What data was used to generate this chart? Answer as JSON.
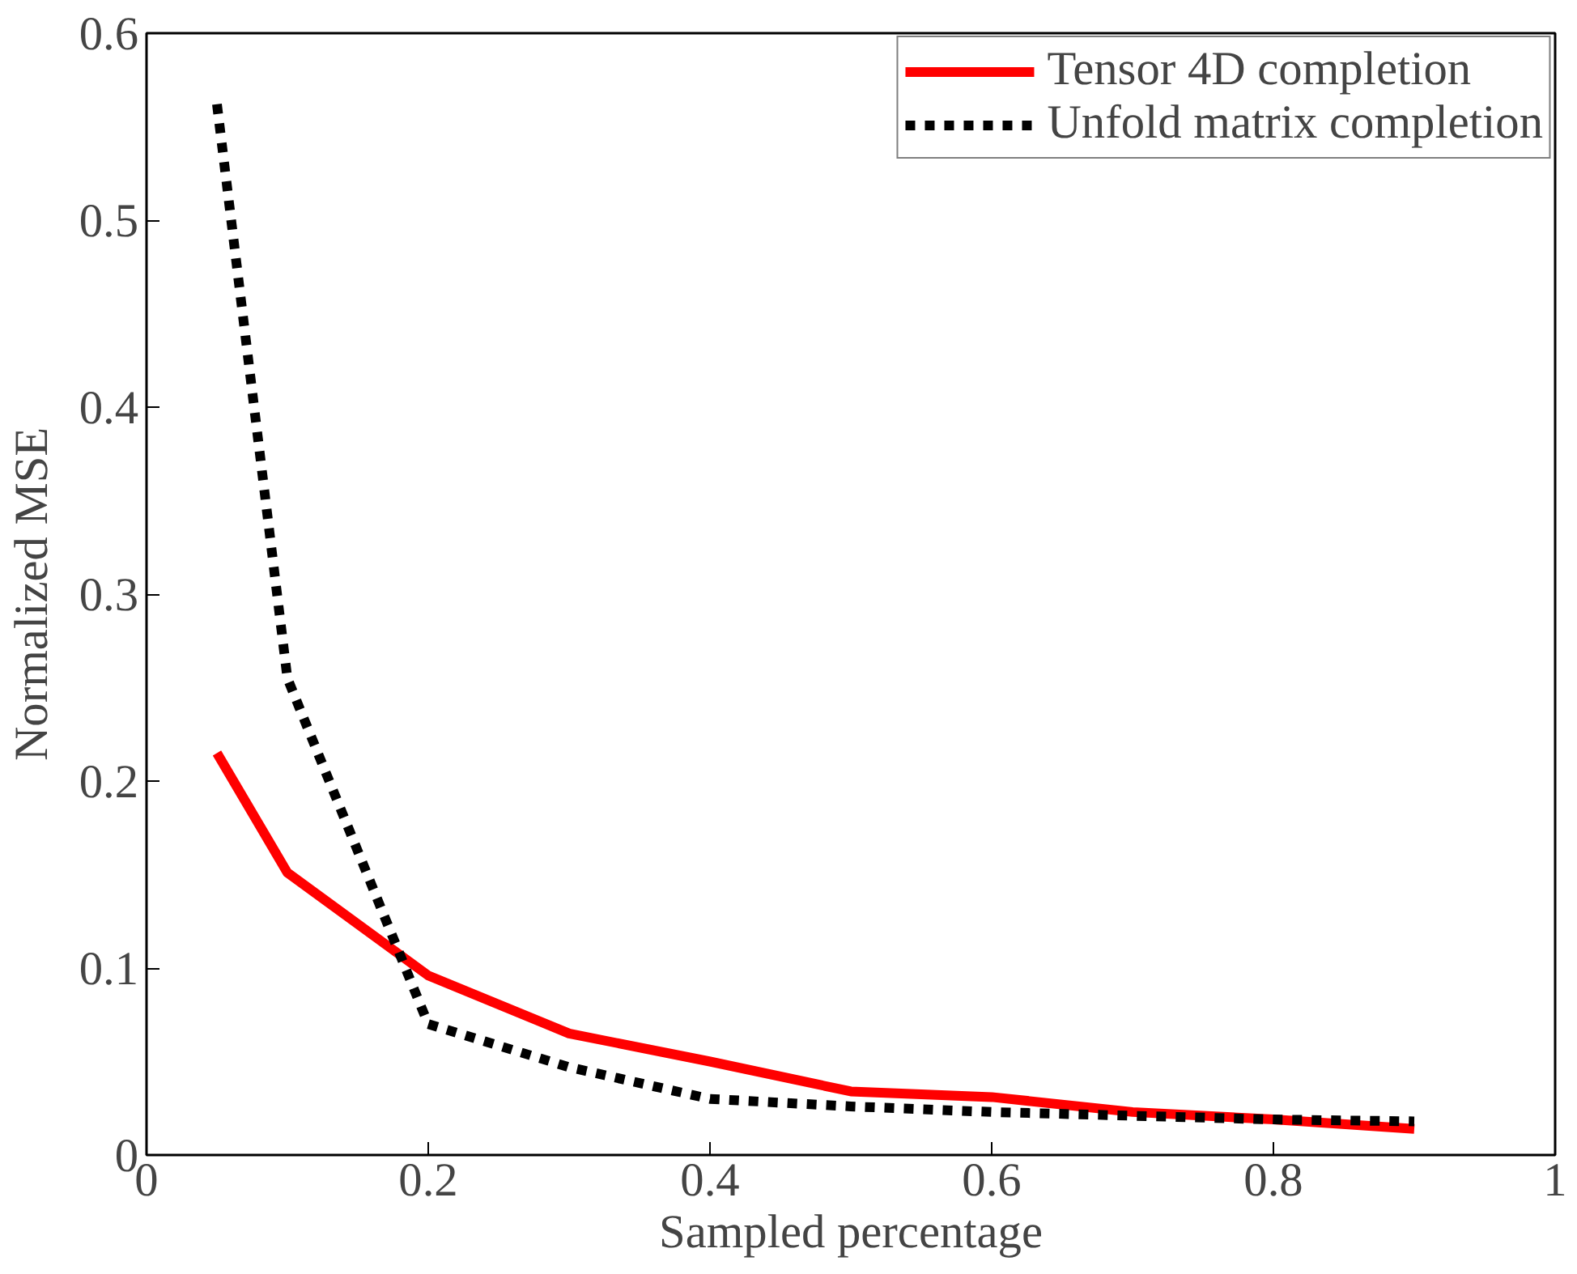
{
  "chart_data": {
    "type": "line",
    "xlabel": "Sampled percentage",
    "ylabel": "Normalized MSE",
    "x": [
      0.05,
      0.1,
      0.2,
      0.3,
      0.4,
      0.5,
      0.6,
      0.7,
      0.8,
      0.9
    ],
    "series": [
      {
        "name": "Tensor 4D completion",
        "color": "#ff0000",
        "line_style": "solid",
        "values": [
          0.215,
          0.151,
          0.096,
          0.065,
          0.05,
          0.034,
          0.031,
          0.023,
          0.019,
          0.014
        ]
      },
      {
        "name": "Unfold matrix completion",
        "color": "#000000",
        "line_style": "dashed",
        "values": [
          0.562,
          0.255,
          0.07,
          0.047,
          0.03,
          0.026,
          0.023,
          0.021,
          0.019,
          0.018
        ]
      }
    ],
    "xlim": [
      0,
      1
    ],
    "ylim": [
      0,
      0.6
    ],
    "xticks": [
      0,
      0.2,
      0.4,
      0.6,
      0.8,
      1
    ],
    "yticks": [
      0,
      0.1,
      0.2,
      0.3,
      0.4,
      0.5,
      0.6
    ],
    "grid": false,
    "legend": "top right",
    "marker": "none"
  }
}
